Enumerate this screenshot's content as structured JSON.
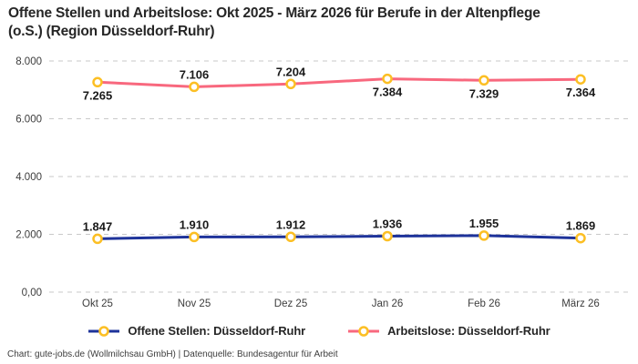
{
  "title": "Offene Stellen und Arbeitslose: Okt 2025 - März 2026 für Berufe in der Altenpflege (o.S.) (Region Düsseldorf-Ruhr)",
  "footer": "Chart: gute-jobs.de (Wollmilchsau GmbH) | Datenquelle: Bundesagentur für Arbeit",
  "colors": {
    "marker": "#fcbf24",
    "grid": "#c9c9c9",
    "axis_text": "#3d3d3d",
    "data_label_text": "#1a1a1a",
    "offene_stellen_line": "#1e339a",
    "arbeitslose_line": "#f8687e"
  },
  "chart_data": {
    "type": "line",
    "categories": [
      "Okt 25",
      "Nov 25",
      "Dez 25",
      "Jan 26",
      "Feb 26",
      "März 26"
    ],
    "series": [
      {
        "name": "Offene Stellen: Düsseldorf-Ruhr",
        "color": "#1e339a",
        "values": [
          1847,
          1910,
          1912,
          1936,
          1955,
          1869
        ],
        "labels": [
          "1.847",
          "1.910",
          "1.912",
          "1.936",
          "1.955",
          "1.869"
        ],
        "label_side": [
          "above",
          "above",
          "above",
          "above",
          "above",
          "above"
        ]
      },
      {
        "name": "Arbeitslose: Düsseldorf-Ruhr",
        "color": "#f8687e",
        "values": [
          7265,
          7106,
          7204,
          7384,
          7329,
          7364
        ],
        "labels": [
          "7.265",
          "7.106",
          "7.204",
          "7.384",
          "7.329",
          "7.364"
        ],
        "label_side": [
          "below",
          "above",
          "above",
          "below",
          "below",
          "below"
        ]
      }
    ],
    "y_ticks": [
      {
        "value": 0,
        "label": "0,00"
      },
      {
        "value": 2000,
        "label": "2.000"
      },
      {
        "value": 4000,
        "label": "4.000"
      },
      {
        "value": 6000,
        "label": "6.000"
      },
      {
        "value": 8000,
        "label": "8.000"
      }
    ],
    "ylim": [
      0,
      8000
    ],
    "grid": "dashed-horizontal",
    "legend_position": "bottom-center",
    "marker": "open-circle"
  }
}
